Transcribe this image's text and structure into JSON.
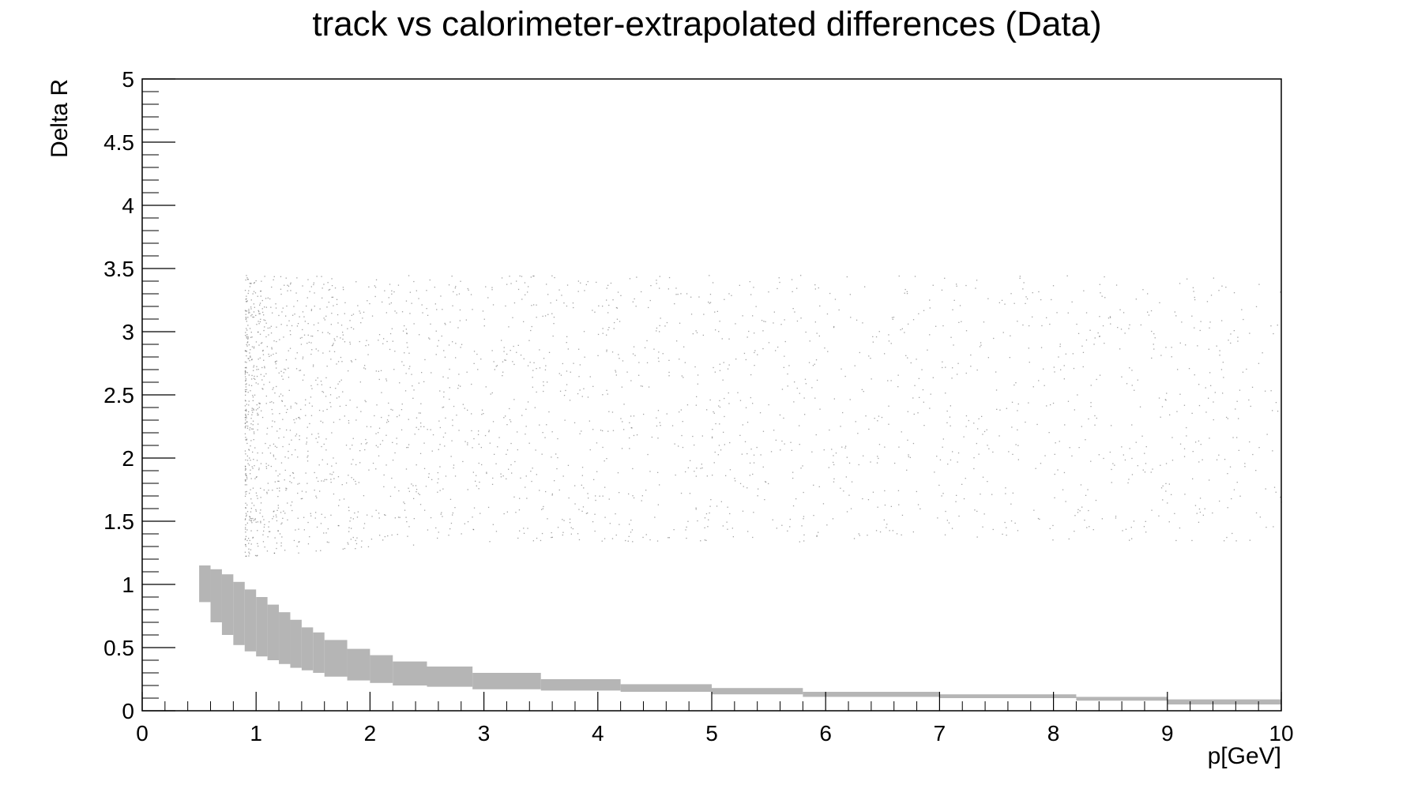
{
  "chart_data": {
    "type": "scatter",
    "title": "track vs calorimeter-extrapolated differences (Data)",
    "xlabel": "p[GeV]",
    "ylabel": "Delta R",
    "xlim": [
      0,
      10
    ],
    "ylim": [
      0,
      5
    ],
    "x_ticks": [
      0,
      1,
      2,
      3,
      4,
      5,
      6,
      7,
      8,
      9,
      10
    ],
    "x_tick_labels": [
      "0",
      "1",
      "2",
      "3",
      "4",
      "5",
      "6",
      "7",
      "8",
      "9",
      "10"
    ],
    "y_ticks": [
      0,
      0.5,
      1,
      1.5,
      2,
      2.5,
      3,
      3.5,
      4,
      4.5,
      5
    ],
    "y_tick_labels": [
      "0",
      "0.5",
      "1",
      "1.5",
      "2",
      "2.5",
      "3",
      "3.5",
      "4",
      "4.5",
      "5"
    ],
    "grid": false,
    "marker_color": "#b5b5b5",
    "scatter_color": "#555555",
    "dense_band": {
      "description": "matched-track band, Delta R decreasing with p",
      "bins": [
        {
          "x": [
            0.5,
            0.6
          ],
          "y": [
            0.86,
            1.15
          ]
        },
        {
          "x": [
            0.6,
            0.7
          ],
          "y": [
            0.7,
            1.12
          ]
        },
        {
          "x": [
            0.7,
            0.8
          ],
          "y": [
            0.6,
            1.08
          ]
        },
        {
          "x": [
            0.8,
            0.9
          ],
          "y": [
            0.52,
            1.02
          ]
        },
        {
          "x": [
            0.9,
            1.0
          ],
          "y": [
            0.47,
            0.96
          ]
        },
        {
          "x": [
            1.0,
            1.1
          ],
          "y": [
            0.43,
            0.9
          ]
        },
        {
          "x": [
            1.1,
            1.2
          ],
          "y": [
            0.4,
            0.84
          ]
        },
        {
          "x": [
            1.2,
            1.3
          ],
          "y": [
            0.37,
            0.78
          ]
        },
        {
          "x": [
            1.3,
            1.4
          ],
          "y": [
            0.34,
            0.72
          ]
        },
        {
          "x": [
            1.4,
            1.5
          ],
          "y": [
            0.32,
            0.66
          ]
        },
        {
          "x": [
            1.5,
            1.6
          ],
          "y": [
            0.3,
            0.62
          ]
        },
        {
          "x": [
            1.6,
            1.8
          ],
          "y": [
            0.27,
            0.56
          ]
        },
        {
          "x": [
            1.8,
            2.0
          ],
          "y": [
            0.24,
            0.49
          ]
        },
        {
          "x": [
            2.0,
            2.2
          ],
          "y": [
            0.22,
            0.44
          ]
        },
        {
          "x": [
            2.2,
            2.5
          ],
          "y": [
            0.2,
            0.39
          ]
        },
        {
          "x": [
            2.5,
            2.9
          ],
          "y": [
            0.19,
            0.35
          ]
        },
        {
          "x": [
            2.9,
            3.5
          ],
          "y": [
            0.17,
            0.3
          ]
        },
        {
          "x": [
            3.5,
            4.2
          ],
          "y": [
            0.16,
            0.25
          ]
        },
        {
          "x": [
            4.2,
            5.0
          ],
          "y": [
            0.15,
            0.21
          ]
        },
        {
          "x": [
            5.0,
            5.8
          ],
          "y": [
            0.13,
            0.18
          ]
        },
        {
          "x": [
            5.8,
            7.0
          ],
          "y": [
            0.11,
            0.15
          ]
        },
        {
          "x": [
            7.0,
            8.2
          ],
          "y": [
            0.1,
            0.13
          ]
        },
        {
          "x": [
            8.2,
            9.0
          ],
          "y": [
            0.08,
            0.11
          ]
        },
        {
          "x": [
            9.0,
            10.0
          ],
          "y": [
            0.05,
            0.09
          ]
        }
      ]
    },
    "sparse_region": {
      "description": "diffuse mismatched entries",
      "x_range": [
        0.9,
        10
      ],
      "y_range": [
        1.22,
        3.45
      ]
    }
  }
}
